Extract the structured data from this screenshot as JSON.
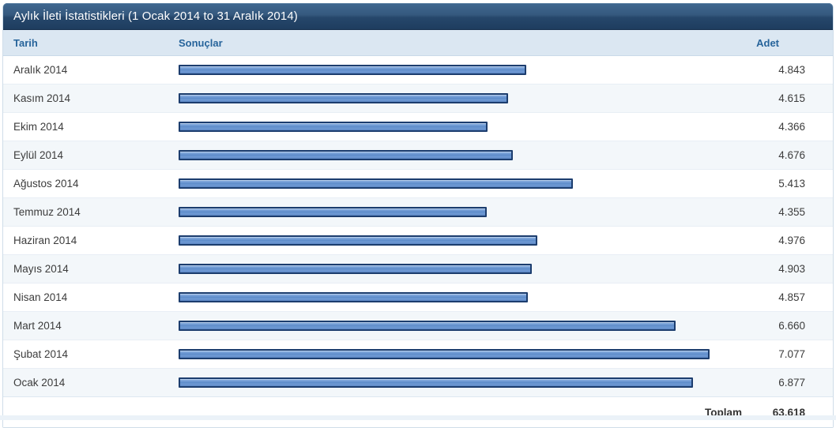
{
  "panel": {
    "title": "Aylık İleti İstatistikleri (1 Ocak 2014 to 31 Aralık 2014)"
  },
  "table": {
    "columns": {
      "date": "Tarih",
      "results": "Sonuçlar",
      "count": "Adet"
    },
    "footer": {
      "label": "Toplam",
      "total": "63.618"
    }
  },
  "chart_data": {
    "type": "bar",
    "orientation": "horizontal",
    "title": "Aylık İleti İstatistikleri (1 Ocak 2014 to 31 Aralık 2014)",
    "categories": [
      "Aralık 2014",
      "Kasım 2014",
      "Ekim 2014",
      "Eylül 2014",
      "Ağustos 2014",
      "Temmuz 2014",
      "Haziran 2014",
      "Mayıs 2014",
      "Nisan 2014",
      "Mart 2014",
      "Şubat 2014",
      "Ocak 2014"
    ],
    "values": [
      4843,
      4615,
      4366,
      4676,
      5413,
      4355,
      4976,
      4903,
      4857,
      6660,
      7077,
      6877
    ],
    "value_labels": [
      "4.843",
      "4.615",
      "4.366",
      "4.676",
      "5.413",
      "4.355",
      "4.976",
      "4.903",
      "4.857",
      "6.660",
      "7.077",
      "6.877"
    ],
    "total": 63618,
    "total_label": "63.618",
    "xlabel": "Sonuçlar",
    "ylabel": "Tarih",
    "xlim": [
      634,
      7077
    ],
    "grid": false,
    "legend": false,
    "bar_color": "#5e8cca",
    "bar_border_color": "#1c3d6e"
  },
  "colors": {
    "titlebar_top": "#406890",
    "titlebar_bottom": "#1e3d5f",
    "header_bg": "#dbe7f2",
    "header_text": "#27649b",
    "row_alt_bg": "#f3f7fa",
    "row_text": "#3c3c3c"
  }
}
